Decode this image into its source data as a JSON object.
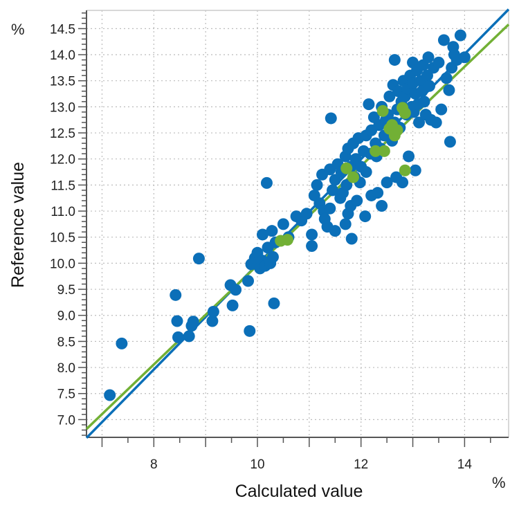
{
  "chart_data": {
    "type": "scatter",
    "xlabel": "Calculated value",
    "ylabel": "Reference value",
    "x_unit": "%",
    "y_unit": "%",
    "xlim": [
      6.7,
      14.85
    ],
    "ylim": [
      6.66,
      14.85
    ],
    "x_major_ticks": [
      8,
      10,
      12,
      14
    ],
    "x_minor_step": 0.5,
    "y_major_ticks": [
      7.0,
      7.5,
      8.0,
      8.5,
      9.0,
      9.5,
      10.0,
      10.5,
      11.0,
      11.5,
      12.0,
      12.5,
      13.0,
      13.5,
      14.0,
      14.5
    ],
    "y_minor_step": 0.1,
    "x_grid_step": 1,
    "y_grid_step": 0.5,
    "grid": true,
    "colors": {
      "calibration": "#0b6fb8",
      "validation": "#72b035",
      "grid": "#bbbbbb"
    },
    "series": [
      {
        "color": "#0b6fb8",
        "points": [
          [
            7.15,
            7.47
          ],
          [
            7.38,
            8.46
          ],
          [
            8.42,
            9.39
          ],
          [
            8.45,
            8.89
          ],
          [
            8.47,
            8.58
          ],
          [
            8.68,
            8.6
          ],
          [
            8.73,
            8.8
          ],
          [
            8.76,
            8.88
          ],
          [
            8.87,
            10.09
          ],
          [
            9.13,
            8.89
          ],
          [
            9.15,
            9.07
          ],
          [
            9.48,
            9.58
          ],
          [
            9.52,
            9.19
          ],
          [
            9.58,
            9.49
          ],
          [
            9.82,
            9.66
          ],
          [
            9.85,
            8.7
          ],
          [
            9.88,
            9.98
          ],
          [
            9.95,
            10.1
          ],
          [
            10.0,
            10.2
          ],
          [
            10.05,
            9.9
          ],
          [
            10.1,
            10.05
          ],
          [
            10.15,
            9.95
          ],
          [
            10.18,
            11.54
          ],
          [
            10.2,
            10.3
          ],
          [
            10.25,
            10.0
          ],
          [
            10.3,
            10.12
          ],
          [
            10.32,
            9.23
          ],
          [
            10.35,
            10.4
          ],
          [
            10.1,
            10.55
          ],
          [
            10.28,
            10.62
          ],
          [
            10.5,
            10.75
          ],
          [
            10.6,
            10.5
          ],
          [
            10.75,
            10.9
          ],
          [
            10.85,
            10.82
          ],
          [
            10.95,
            10.95
          ],
          [
            11.05,
            10.55
          ],
          [
            11.05,
            10.33
          ],
          [
            11.1,
            11.3
          ],
          [
            11.15,
            11.5
          ],
          [
            11.2,
            11.15
          ],
          [
            11.25,
            11.7
          ],
          [
            11.28,
            11.0
          ],
          [
            11.3,
            10.85
          ],
          [
            11.35,
            10.7
          ],
          [
            11.4,
            11.05
          ],
          [
            11.4,
            11.8
          ],
          [
            11.42,
            12.78
          ],
          [
            11.45,
            11.4
          ],
          [
            11.5,
            11.6
          ],
          [
            11.5,
            10.62
          ],
          [
            11.55,
            11.9
          ],
          [
            11.6,
            11.25
          ],
          [
            11.62,
            11.75
          ],
          [
            11.65,
            11.35
          ],
          [
            11.7,
            12.05
          ],
          [
            11.7,
            10.75
          ],
          [
            11.72,
            11.5
          ],
          [
            11.75,
            12.2
          ],
          [
            11.75,
            10.95
          ],
          [
            11.8,
            11.85
          ],
          [
            11.8,
            11.1
          ],
          [
            11.82,
            10.47
          ],
          [
            11.85,
            12.3
          ],
          [
            11.88,
            11.65
          ],
          [
            11.9,
            12.0
          ],
          [
            11.92,
            11.2
          ],
          [
            11.95,
            12.4
          ],
          [
            11.98,
            11.55
          ],
          [
            12.0,
            11.85
          ],
          [
            12.05,
            12.15
          ],
          [
            12.08,
            10.9
          ],
          [
            12.1,
            12.45
          ],
          [
            12.1,
            11.75
          ],
          [
            12.15,
            13.05
          ],
          [
            12.18,
            12.1
          ],
          [
            12.2,
            12.55
          ],
          [
            12.2,
            11.3
          ],
          [
            12.25,
            12.8
          ],
          [
            12.28,
            12.3
          ],
          [
            12.3,
            12.05
          ],
          [
            12.32,
            11.35
          ],
          [
            12.35,
            12.65
          ],
          [
            12.38,
            12.2
          ],
          [
            12.4,
            13.0
          ],
          [
            12.4,
            11.1
          ],
          [
            12.45,
            12.45
          ],
          [
            12.48,
            12.75
          ],
          [
            12.5,
            11.55
          ],
          [
            12.52,
            12.85
          ],
          [
            12.55,
            13.2
          ],
          [
            12.6,
            12.35
          ],
          [
            12.62,
            13.42
          ],
          [
            12.65,
            13.9
          ],
          [
            12.65,
            12.7
          ],
          [
            12.68,
            11.65
          ],
          [
            12.7,
            12.95
          ],
          [
            12.72,
            13.3
          ],
          [
            12.75,
            12.6
          ],
          [
            12.78,
            13.1
          ],
          [
            12.8,
            11.55
          ],
          [
            12.82,
            13.5
          ],
          [
            12.85,
            13.2
          ],
          [
            12.88,
            12.85
          ],
          [
            12.9,
            13.35
          ],
          [
            12.92,
            12.05
          ],
          [
            12.95,
            13.6
          ],
          [
            12.98,
            13.0
          ],
          [
            13.0,
            13.45
          ],
          [
            13.0,
            13.85
          ],
          [
            13.02,
            12.9
          ],
          [
            13.05,
            11.78
          ],
          [
            13.05,
            13.25
          ],
          [
            13.08,
            13.7
          ],
          [
            13.1,
            13.05
          ],
          [
            13.12,
            12.7
          ],
          [
            13.15,
            13.5
          ],
          [
            13.18,
            13.3
          ],
          [
            13.2,
            13.8
          ],
          [
            13.22,
            13.1
          ],
          [
            13.25,
            12.85
          ],
          [
            13.28,
            13.6
          ],
          [
            13.3,
            13.95
          ],
          [
            13.32,
            13.4
          ],
          [
            13.35,
            12.75
          ],
          [
            13.4,
            13.75
          ],
          [
            13.45,
            12.7
          ],
          [
            13.5,
            13.85
          ],
          [
            13.55,
            12.95
          ],
          [
            13.6,
            14.28
          ],
          [
            13.65,
            13.55
          ],
          [
            13.7,
            13.32
          ],
          [
            13.72,
            12.33
          ],
          [
            13.75,
            13.75
          ],
          [
            13.78,
            14.15
          ],
          [
            13.8,
            14.0
          ],
          [
            13.85,
            13.9
          ],
          [
            13.92,
            14.37
          ],
          [
            14.0,
            13.95
          ]
        ]
      },
      {
        "color": "#72b035",
        "points": [
          [
            10.45,
            10.43
          ],
          [
            10.58,
            10.45
          ],
          [
            11.72,
            11.82
          ],
          [
            11.85,
            11.65
          ],
          [
            12.28,
            12.15
          ],
          [
            12.42,
            12.92
          ],
          [
            12.45,
            12.15
          ],
          [
            12.55,
            12.58
          ],
          [
            12.6,
            12.65
          ],
          [
            12.65,
            12.45
          ],
          [
            12.7,
            12.55
          ],
          [
            12.8,
            12.98
          ],
          [
            12.85,
            12.88
          ],
          [
            12.85,
            11.78
          ]
        ]
      }
    ],
    "regression_lines": [
      {
        "color": "#0b6fb8",
        "x": [
          6.7,
          14.85
        ],
        "y": [
          6.65,
          14.87
        ]
      },
      {
        "color": "#72b035",
        "x": [
          6.7,
          14.85
        ],
        "y": [
          6.82,
          14.58
        ]
      }
    ]
  }
}
